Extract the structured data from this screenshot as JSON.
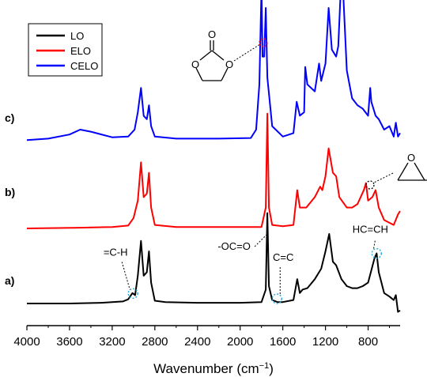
{
  "chart_data": {
    "type": "line",
    "xlabel": "Wavenumber (cm",
    "xlabel_sup": "−1",
    "xlabel_close": ")",
    "x_reversed": true,
    "xlim": [
      4000,
      500
    ],
    "x_ticks": [
      4000,
      3600,
      3200,
      2800,
      2400,
      2000,
      1600,
      1200,
      800
    ],
    "legend": {
      "placement": "top-left",
      "entries": [
        {
          "label": "LO",
          "color": "#000000"
        },
        {
          "label": "ELO",
          "color": "#ff0000"
        },
        {
          "label": "CELO",
          "color": "#0000ff"
        }
      ]
    },
    "series": [
      {
        "name": "LO",
        "trace_label": "a)",
        "color": "#000000",
        "baseline": 0.0,
        "points": [
          [
            4000,
            0
          ],
          [
            3600,
            0
          ],
          [
            3300,
            0.01
          ],
          [
            3100,
            0.03
          ],
          [
            3050,
            0.06
          ],
          [
            3010,
            0.15
          ],
          [
            2985,
            0.12
          ],
          [
            2960,
            0.4
          ],
          [
            2930,
            0.9
          ],
          [
            2905,
            0.4
          ],
          [
            2875,
            0.45
          ],
          [
            2855,
            0.75
          ],
          [
            2835,
            0.3
          ],
          [
            2800,
            0.04
          ],
          [
            2700,
            0.02
          ],
          [
            2400,
            0.01
          ],
          [
            2000,
            0.01
          ],
          [
            1800,
            0.02
          ],
          [
            1760,
            0.2
          ],
          [
            1745,
            1.3
          ],
          [
            1730,
            0.25
          ],
          [
            1700,
            0.05
          ],
          [
            1650,
            0.02
          ],
          [
            1600,
            0.02
          ],
          [
            1500,
            0.05
          ],
          [
            1465,
            0.35
          ],
          [
            1440,
            0.15
          ],
          [
            1415,
            0.2
          ],
          [
            1370,
            0.22
          ],
          [
            1300,
            0.35
          ],
          [
            1240,
            0.5
          ],
          [
            1200,
            0.75
          ],
          [
            1165,
            1.0
          ],
          [
            1130,
            0.6
          ],
          [
            1100,
            0.55
          ],
          [
            1050,
            0.35
          ],
          [
            1000,
            0.25
          ],
          [
            950,
            0.22
          ],
          [
            900,
            0.22
          ],
          [
            850,
            0.25
          ],
          [
            800,
            0.3
          ],
          [
            740,
            0.65
          ],
          [
            720,
            0.72
          ],
          [
            700,
            0.45
          ],
          [
            650,
            0.15
          ],
          [
            600,
            0.1
          ],
          [
            560,
            0.05
          ],
          [
            540,
            0.12
          ],
          [
            520,
            -0.12
          ],
          [
            500,
            -0.1
          ]
        ]
      },
      {
        "name": "ELO",
        "trace_label": "b)",
        "color": "#ff0000",
        "baseline": 1.08,
        "points": [
          [
            4000,
            0
          ],
          [
            3500,
            0.01
          ],
          [
            3200,
            0.02
          ],
          [
            3050,
            0.04
          ],
          [
            3000,
            0.15
          ],
          [
            2960,
            0.4
          ],
          [
            2930,
            0.95
          ],
          [
            2905,
            0.45
          ],
          [
            2875,
            0.5
          ],
          [
            2855,
            0.8
          ],
          [
            2835,
            0.3
          ],
          [
            2800,
            0.05
          ],
          [
            2600,
            0.02
          ],
          [
            2200,
            0.02
          ],
          [
            1800,
            0.02
          ],
          [
            1760,
            0.3
          ],
          [
            1745,
            1.65
          ],
          [
            1730,
            0.3
          ],
          [
            1700,
            0.05
          ],
          [
            1600,
            0.03
          ],
          [
            1500,
            0.05
          ],
          [
            1465,
            0.55
          ],
          [
            1440,
            0.3
          ],
          [
            1415,
            0.3
          ],
          [
            1380,
            0.3
          ],
          [
            1300,
            0.45
          ],
          [
            1250,
            0.6
          ],
          [
            1230,
            0.55
          ],
          [
            1200,
            0.75
          ],
          [
            1170,
            1.15
          ],
          [
            1130,
            0.8
          ],
          [
            1100,
            0.75
          ],
          [
            1070,
            0.45
          ],
          [
            1000,
            0.3
          ],
          [
            950,
            0.3
          ],
          [
            900,
            0.35
          ],
          [
            840,
            0.55
          ],
          [
            820,
            0.65
          ],
          [
            800,
            0.4
          ],
          [
            760,
            0.45
          ],
          [
            730,
            0.55
          ],
          [
            700,
            0.3
          ],
          [
            650,
            0.12
          ],
          [
            600,
            0.08
          ],
          [
            560,
            0.05
          ],
          [
            520,
            0.2
          ],
          [
            500,
            0.25
          ]
        ]
      },
      {
        "name": "CELO",
        "trace_label": "c)",
        "color": "#0000ff",
        "baseline": 2.35,
        "points": [
          [
            4000,
            0
          ],
          [
            3800,
            0.02
          ],
          [
            3600,
            0.08
          ],
          [
            3500,
            0.15
          ],
          [
            3400,
            0.12
          ],
          [
            3200,
            0.04
          ],
          [
            3050,
            0.05
          ],
          [
            2990,
            0.15
          ],
          [
            2960,
            0.4
          ],
          [
            2930,
            0.75
          ],
          [
            2905,
            0.35
          ],
          [
            2875,
            0.3
          ],
          [
            2855,
            0.5
          ],
          [
            2835,
            0.2
          ],
          [
            2800,
            0.05
          ],
          [
            2600,
            0.02
          ],
          [
            2200,
            0.02
          ],
          [
            1900,
            0.03
          ],
          [
            1850,
            0.15
          ],
          [
            1820,
            0.8
          ],
          [
            1800,
            2.2
          ],
          [
            1790,
            1.2
          ],
          [
            1775,
            1.2
          ],
          [
            1760,
            1.9
          ],
          [
            1745,
            0.9
          ],
          [
            1700,
            0.2
          ],
          [
            1600,
            0.05
          ],
          [
            1500,
            0.1
          ],
          [
            1470,
            0.55
          ],
          [
            1440,
            0.35
          ],
          [
            1400,
            0.4
          ],
          [
            1390,
            1.05
          ],
          [
            1370,
            0.8
          ],
          [
            1300,
            0.7
          ],
          [
            1260,
            1.1
          ],
          [
            1240,
            0.85
          ],
          [
            1200,
            1.1
          ],
          [
            1170,
            1.9
          ],
          [
            1140,
            1.3
          ],
          [
            1100,
            1.2
          ],
          [
            1080,
            1.35
          ],
          [
            1050,
            2.4
          ],
          [
            1040,
            2.65
          ],
          [
            1030,
            2.0
          ],
          [
            1000,
            1.0
          ],
          [
            950,
            0.6
          ],
          [
            900,
            0.5
          ],
          [
            850,
            0.45
          ],
          [
            800,
            0.35
          ],
          [
            780,
            0.75
          ],
          [
            770,
            0.55
          ],
          [
            730,
            0.35
          ],
          [
            700,
            0.3
          ],
          [
            650,
            0.15
          ],
          [
            600,
            0.2
          ],
          [
            560,
            0.05
          ],
          [
            540,
            0.25
          ],
          [
            520,
            0.05
          ],
          [
            500,
            0.1
          ]
        ]
      }
    ],
    "annotations": [
      {
        "text": "=C-H",
        "x": 3005,
        "series": "LO"
      },
      {
        "text": "-OC=O",
        "x": 1745,
        "series": "LO"
      },
      {
        "text": "C=C",
        "x": 1655,
        "series": "LO"
      },
      {
        "text": "HC=CH",
        "x": 720,
        "series": "LO"
      }
    ],
    "insets": [
      {
        "name": "cyclic-carbonate-structure",
        "label": "O"
      },
      {
        "name": "epoxide-structure",
        "label": "O"
      }
    ]
  }
}
